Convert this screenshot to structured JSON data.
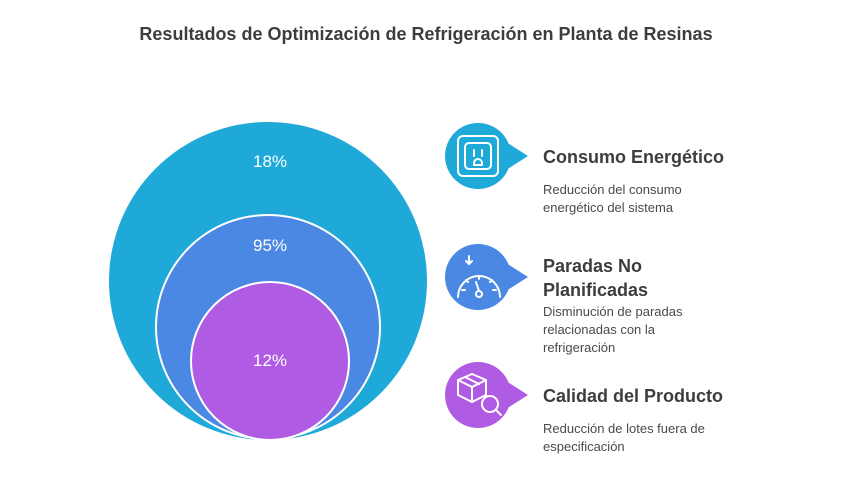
{
  "title": "Resultados de Optimización de Refrigeración en Planta de Resinas",
  "circles": [
    {
      "value": "18%",
      "color": "#1ea9d8"
    },
    {
      "value": "95%",
      "color": "#4a88e4"
    },
    {
      "value": "12%",
      "color": "#b05be4"
    }
  ],
  "items": [
    {
      "title": "Consumo Energético",
      "description": "Reducción del consumo energético del sistema",
      "icon": "power-outlet-icon",
      "color": "#1ea9d8"
    },
    {
      "title": "Paradas No Planificadas",
      "description": "Disminución de paradas relacionadas con la refrigeración",
      "icon": "gauge-icon",
      "color": "#4a88e4"
    },
    {
      "title": "Calidad del Producto",
      "description": "Reducción de lotes fuera de especificación",
      "icon": "box-search-icon",
      "color": "#b05be4"
    }
  ]
}
